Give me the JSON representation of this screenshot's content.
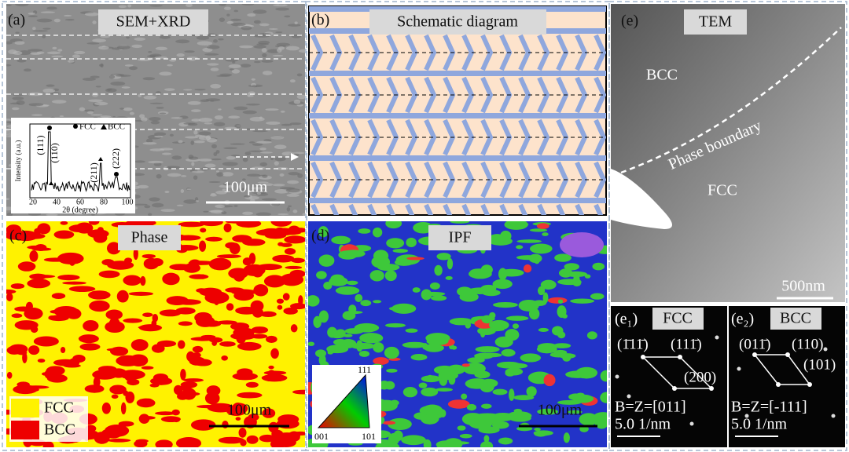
{
  "panels": {
    "a": {
      "label": "(a)",
      "title": "SEM+XRD",
      "scale_bar": "100μm"
    },
    "b": {
      "label": "(b)",
      "title": "Schematic diagram"
    },
    "c": {
      "label": "(c)",
      "title": "Phase",
      "scale_bar": "100μm",
      "legend": [
        "FCC",
        "BCC"
      ]
    },
    "d": {
      "label": "(d)",
      "title": "IPF",
      "scale_bar": "100μm"
    },
    "e": {
      "label": "(e)",
      "title": "TEM",
      "scale_bar": "500nm",
      "annotations": [
        "BCC",
        "Phase boundary",
        "FCC"
      ]
    },
    "e1": {
      "label": "(e₁)",
      "title": "FCC",
      "spots": [
        "(1̄11̄)",
        "(111̄)",
        "(200)"
      ],
      "zone": "B=Z=[011]",
      "scale_bar": "5.0 1/nm"
    },
    "e2": {
      "label": "(e₂)",
      "title": "BCC",
      "spots": [
        "(011̄)",
        "(110)",
        "(101)"
      ],
      "zone": "B=Z=[-111]",
      "scale_bar": "5.0 1/nm"
    }
  },
  "xrd": {
    "legend": [
      "FCC",
      "BCC"
    ],
    "y_label": "Intensity (a.u.)",
    "x_label": "2θ (degree)",
    "x_ticks": [
      "20",
      "40",
      "60",
      "80",
      "100"
    ],
    "peaks": [
      "(111)",
      "(110)",
      "(211)",
      "(222)"
    ]
  },
  "ipf": {
    "corners": [
      "001",
      "101",
      "111"
    ]
  }
}
